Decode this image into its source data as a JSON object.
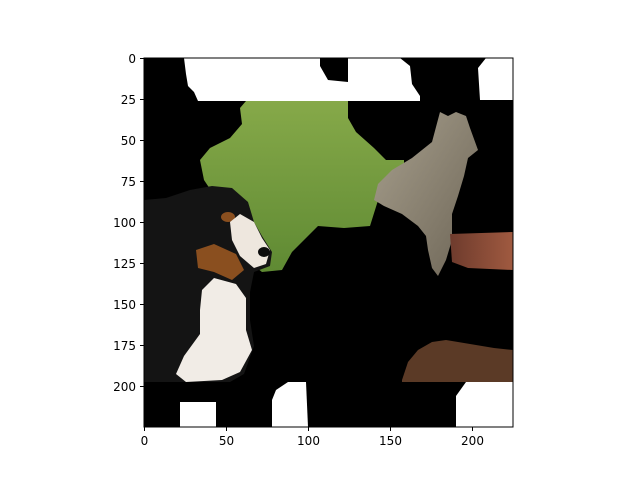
{
  "figure": {
    "content": "masked-image",
    "x_ticks": [
      "0",
      "50",
      "100",
      "150",
      "200"
    ],
    "y_ticks": [
      "0",
      "25",
      "50",
      "75",
      "100",
      "125",
      "150",
      "175",
      "200"
    ],
    "colors": {
      "mask": "#000000",
      "grass": "#6f9a3c",
      "dog_black": "#141414",
      "dog_tan": "#8a4f1f",
      "dog_white": "#f1ece6",
      "cat": "#8e8574",
      "rust": "#8a4a38"
    }
  }
}
